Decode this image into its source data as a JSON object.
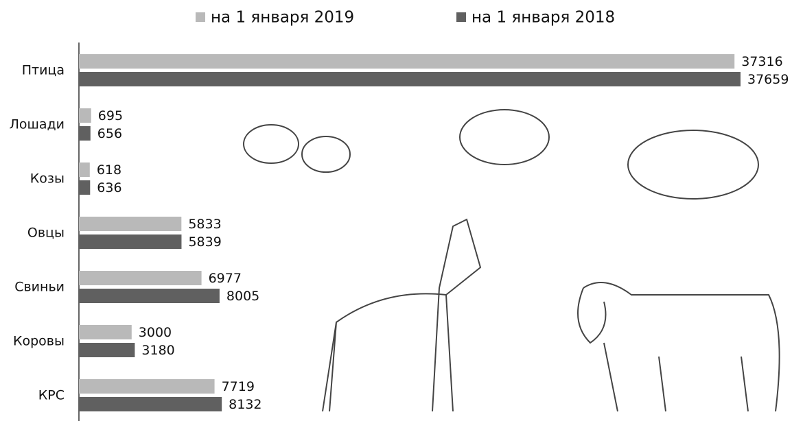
{
  "chart_data": {
    "type": "bar",
    "orientation": "horizontal",
    "categories": [
      "Птица",
      "Лошади",
      "Козы",
      "Овцы",
      "Свиньи",
      "Коровы",
      "КРС"
    ],
    "series": [
      {
        "name": "на 1 января 2019",
        "color": "#b9b9b9",
        "values": [
          37316,
          695,
          618,
          5833,
          6977,
          3000,
          7719
        ]
      },
      {
        "name": "на 1 января 2018",
        "color": "#606060",
        "values": [
          37659,
          656,
          636,
          5839,
          8005,
          3180,
          8132
        ]
      }
    ],
    "legend": "top"
  }
}
